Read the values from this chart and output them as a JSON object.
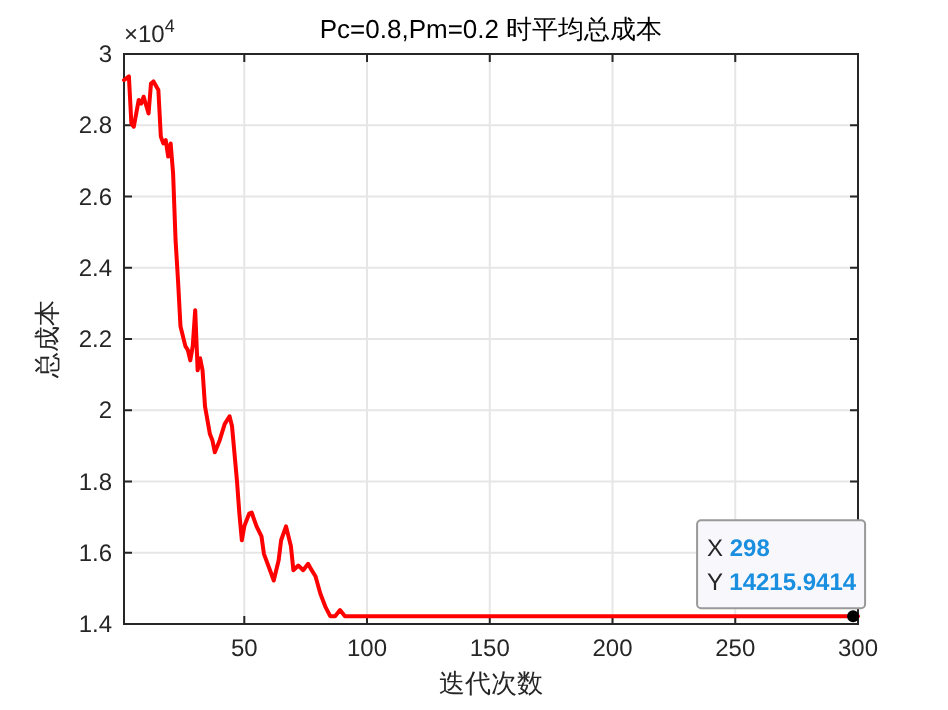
{
  "chart_data": {
    "type": "line",
    "title": "Pc=0.8,Pm=0.2 时平均总成本",
    "xlabel": "迭代次数",
    "ylabel": "总成本",
    "annotations": [
      "×10$^{4}$",
      {
        "text": "X 298\nY 14215.9414",
        "x": 298,
        "y": 1.42159414
      }
    ],
    "x": [
      1,
      3,
      4,
      5,
      7,
      8,
      9,
      11,
      12,
      13,
      15,
      16,
      17,
      18,
      19,
      20,
      21,
      22,
      23,
      24,
      26,
      27,
      28,
      29,
      30,
      31,
      32,
      33,
      34,
      36,
      37,
      38,
      40,
      42,
      44,
      45,
      47,
      48,
      49,
      50,
      52,
      53,
      55,
      57,
      58,
      61,
      62,
      64,
      65,
      67,
      69,
      70,
      72,
      74,
      76,
      77,
      79,
      81,
      83,
      85,
      87,
      89,
      91,
      298,
      300
    ],
    "series": [
      {
        "color": "#ff0000",
        "values": [
          2.927,
          2.937,
          2.805,
          2.796,
          2.871,
          2.861,
          2.88,
          2.833,
          2.917,
          2.923,
          2.899,
          2.768,
          2.749,
          2.758,
          2.712,
          2.749,
          2.665,
          2.478,
          2.365,
          2.236,
          2.18,
          2.169,
          2.14,
          2.18,
          2.281,
          2.112,
          2.146,
          2.112,
          2.011,
          1.933,
          1.916,
          1.882,
          1.916,
          1.961,
          1.983,
          1.955,
          1.803,
          1.71,
          1.635,
          1.674,
          1.71,
          1.713,
          1.674,
          1.646,
          1.597,
          1.541,
          1.522,
          1.579,
          1.635,
          1.674,
          1.618,
          1.551,
          1.564,
          1.551,
          1.569,
          1.556,
          1.534,
          1.485,
          1.449,
          1.422,
          1.422,
          1.439,
          1.422,
          1.422,
          1.422
        ]
      }
    ],
    "xlim": [
      1,
      300
    ],
    "xticks": [
      50,
      100,
      150,
      200,
      250,
      300
    ],
    "ylim": [
      1.4,
      3
    ],
    "yticks": [
      1.4,
      1.6,
      1.8,
      2,
      2.2,
      2.4,
      2.6,
      2.8,
      3
    ],
    "grid": true,
    "marker": "none",
    "line_style": "solid"
  }
}
